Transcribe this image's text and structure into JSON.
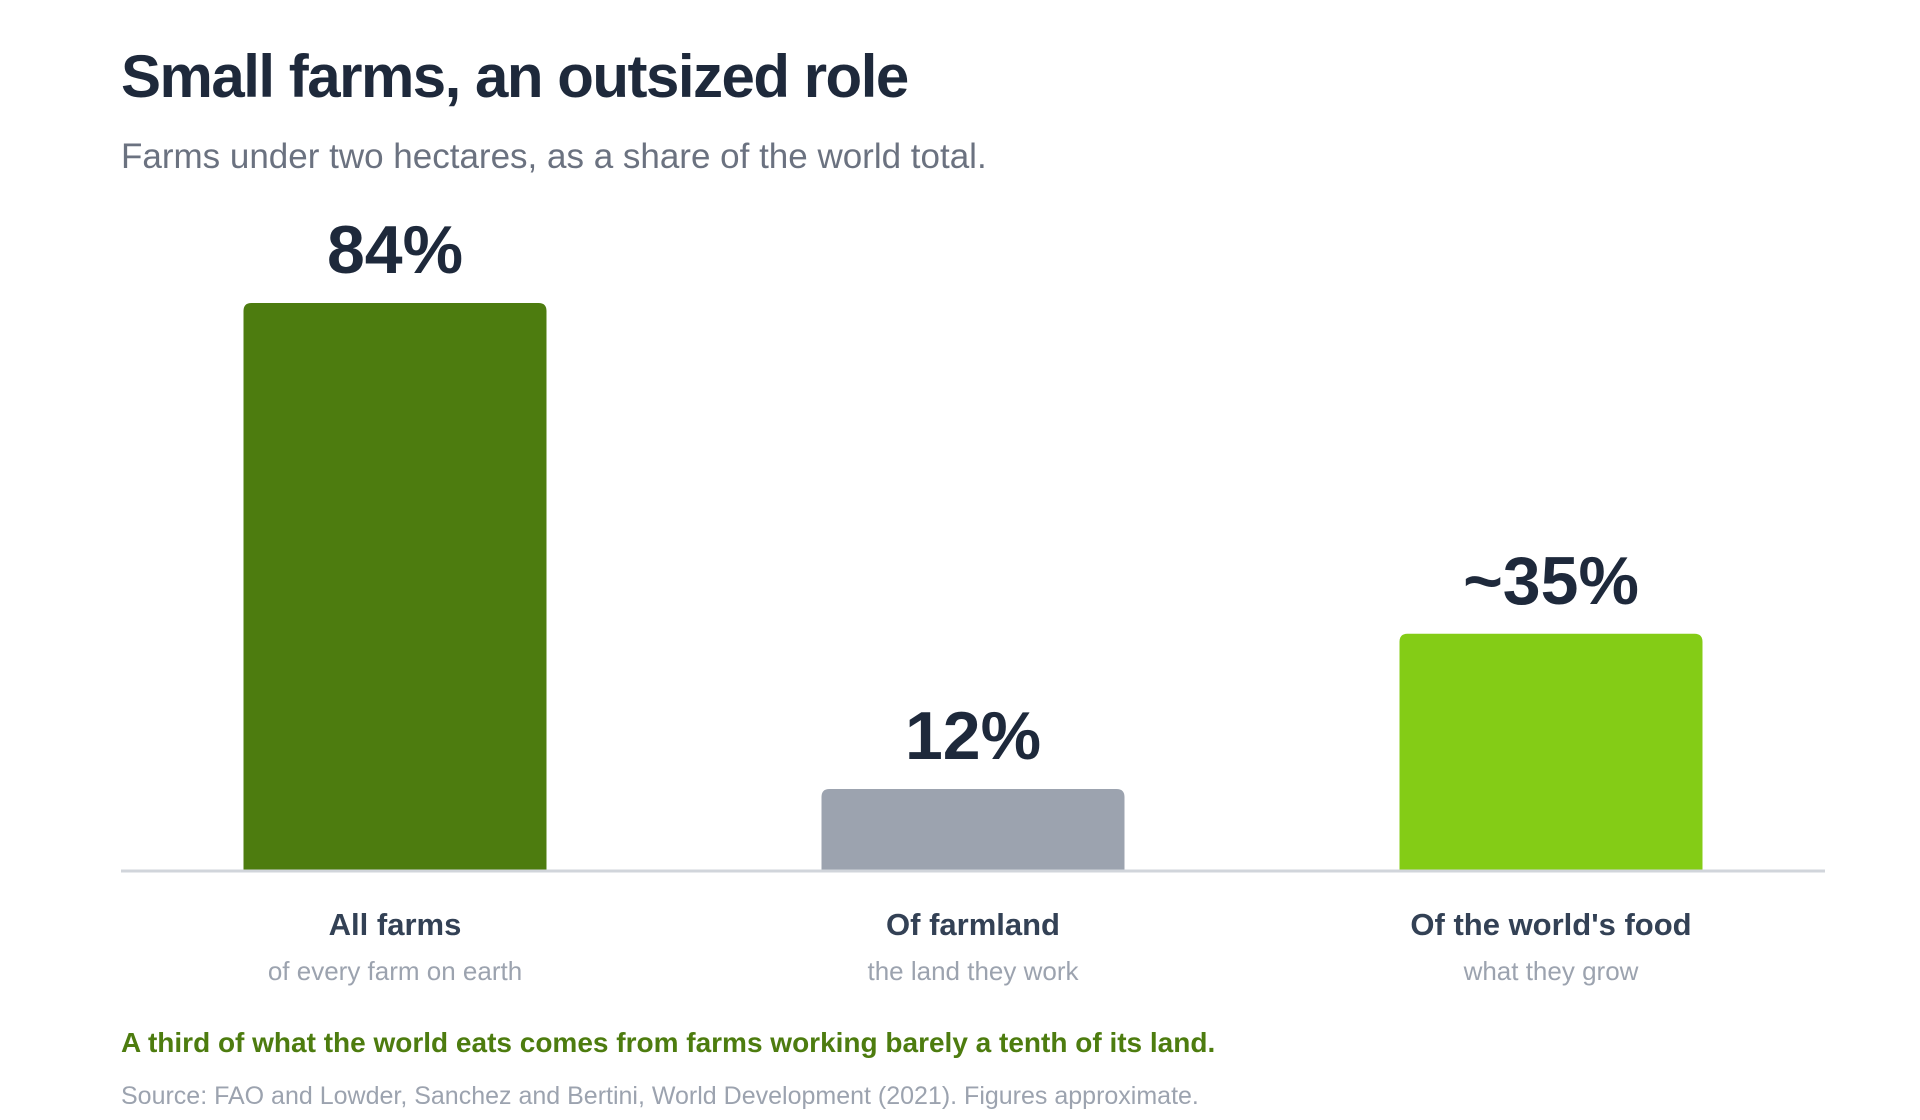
{
  "header": {
    "title": "Small farms, an outsized role",
    "subtitle": "Farms under two hectares, as a share of the world total."
  },
  "chart_data": {
    "type": "bar",
    "title": "Small farms, an outsized role",
    "subtitle": "Farms under two hectares, as a share of the world total.",
    "categories": [
      "All farms",
      "Of farmland",
      "Of the world's food"
    ],
    "sublabels": [
      "of every farm on earth",
      "the land they work",
      "what they grow"
    ],
    "values": [
      84,
      12,
      35
    ],
    "value_labels": [
      "84%",
      "12%",
      "~35%"
    ],
    "colors": [
      "#4d7c0f",
      "#9ca3af",
      "#84cc16"
    ],
    "xlabel": "",
    "ylabel": "",
    "ylim": [
      0,
      100
    ],
    "grid": false,
    "legend": "none"
  },
  "footer": {
    "takeaway": "A third of what the world eats comes from farms working barely a tenth of its land.",
    "source": "Source: FAO and Lowder, Sanchez and Bertini, World Development (2021). Figures approximate."
  }
}
